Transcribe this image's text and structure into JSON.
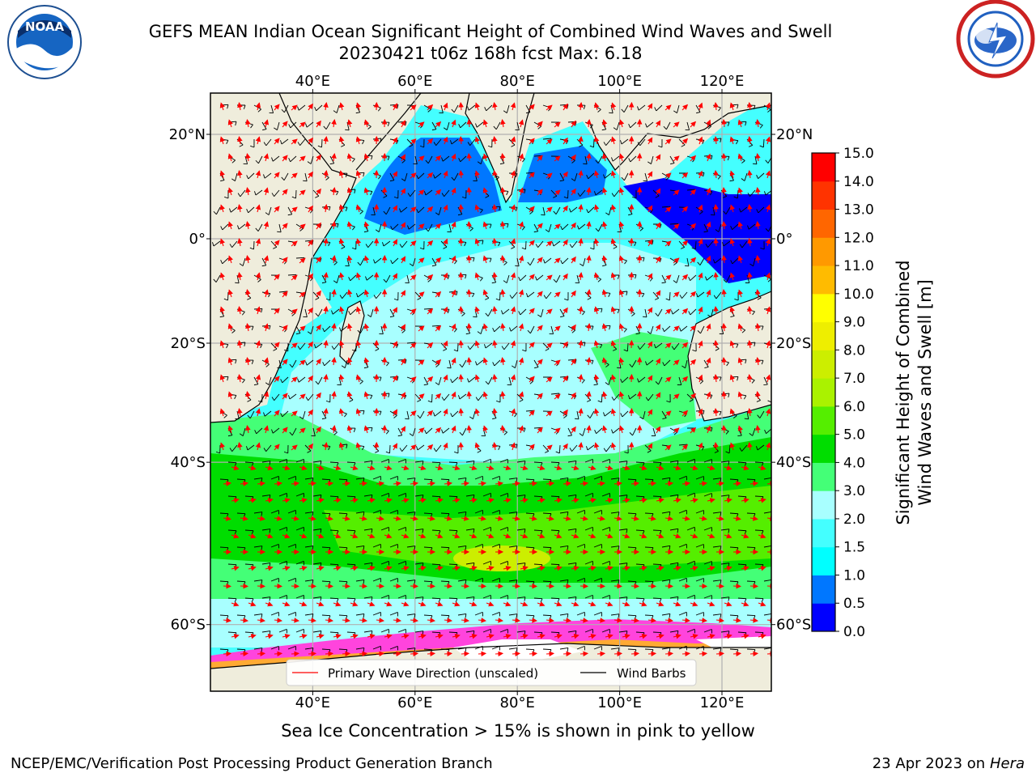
{
  "header": {
    "title_line1": "GEFS MEAN Indian Ocean Significant Height of Combined Wind Waves and Swell",
    "title_line2": "20230421 t06z 168h fcst   Max: 6.18"
  },
  "logos": {
    "left": {
      "icon": "noaa-logo-icon",
      "text": "NOAA"
    },
    "right": {
      "icon": "nws-logo-icon"
    }
  },
  "map": {
    "lon_ticks": [
      {
        "value": 40,
        "label": "40°E"
      },
      {
        "value": 60,
        "label": "60°E"
      },
      {
        "value": 80,
        "label": "80°E"
      },
      {
        "value": 100,
        "label": "100°E"
      },
      {
        "value": 120,
        "label": "120°E"
      }
    ],
    "lat_ticks": [
      {
        "value": 20,
        "label": "20°N"
      },
      {
        "value": 0,
        "label": "0°"
      },
      {
        "value": -20,
        "label": "20°S"
      },
      {
        "value": -40,
        "label": "40°S"
      },
      {
        "value": -60,
        "label": "60°S"
      }
    ],
    "legend": {
      "wave_label": "Primary Wave Direction (unscaled)",
      "wind_label": "Wind Barbs",
      "wave_color": "#ff0000",
      "wind_color": "#000000"
    },
    "colors": {
      "land": "#efeddc",
      "sea_ice": "#ff44dd",
      "ice_edge": "#ffaa33"
    }
  },
  "colorbar": {
    "label_line1": "Significant Height of Combined",
    "label_line2": "Wind Waves and Swell [m]",
    "levels": [
      {
        "value": 0.0,
        "label": "0.0",
        "color": "#0000ff"
      },
      {
        "value": 0.5,
        "label": "0.5",
        "color": "#0077ff"
      },
      {
        "value": 1.0,
        "label": "1.0",
        "color": "#00ffff"
      },
      {
        "value": 1.5,
        "label": "1.5",
        "color": "#44ffff"
      },
      {
        "value": 2.0,
        "label": "2.0",
        "color": "#a8ffff"
      },
      {
        "value": 3.0,
        "label": "3.0",
        "color": "#44ff77"
      },
      {
        "value": 4.0,
        "label": "4.0",
        "color": "#00dd00"
      },
      {
        "value": 5.0,
        "label": "5.0",
        "color": "#55ee00"
      },
      {
        "value": 6.0,
        "label": "6.0",
        "color": "#aaf200"
      },
      {
        "value": 7.0,
        "label": "7.0",
        "color": "#ccee00"
      },
      {
        "value": 8.0,
        "label": "8.0",
        "color": "#eeee00"
      },
      {
        "value": 9.0,
        "label": "9.0",
        "color": "#ffff00"
      },
      {
        "value": 10.0,
        "label": "10.0",
        "color": "#ffbb00"
      },
      {
        "value": 11.0,
        "label": "11.0",
        "color": "#ff9900"
      },
      {
        "value": 12.0,
        "label": "12.0",
        "color": "#ff6600"
      },
      {
        "value": 13.0,
        "label": "13.0",
        "color": "#ff3300"
      },
      {
        "value": 14.0,
        "label": "14.0",
        "color": "#ff0000"
      },
      {
        "value": 15.0,
        "label": "15.0"
      }
    ]
  },
  "caption": "Sea Ice Concentration > 15% is shown in pink to yellow",
  "footer": {
    "left": "NCEP/EMC/Verification Post Processing Product Generation Branch",
    "right_prefix": "23 Apr 2023 on ",
    "right_host": "Hera"
  }
}
